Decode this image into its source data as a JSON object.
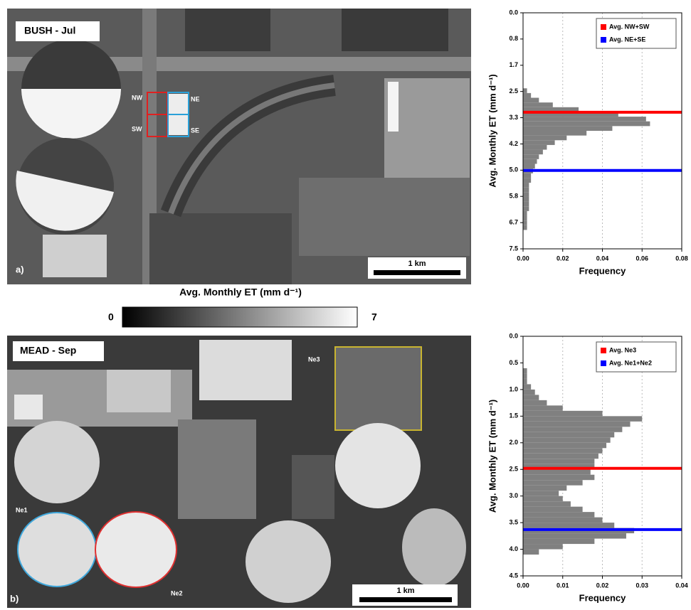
{
  "panels": [
    {
      "title": "BUSH - Jul",
      "tag": "a)",
      "scale": "1 km",
      "regions": [
        "NW",
        "NE",
        "SW",
        "SE"
      ]
    },
    {
      "title": "MEAD - Sep",
      "tag": "b)",
      "scale": "1 km",
      "regions": [
        "Ne1",
        "Ne2",
        "Ne3"
      ]
    }
  ],
  "colorbar": {
    "label": "Avg. Monthly ET (mm d⁻¹)",
    "min": 0,
    "max": 7
  },
  "chart_data": [
    {
      "type": "histogram",
      "orientation": "horizontal",
      "color": "#808080",
      "xlabel": "Frequency",
      "ylabel": "Avg. Monthly ET (mm d⁻¹)",
      "xlim": [
        0,
        0.08
      ],
      "xticks": [
        {
          "value": 0,
          "label": "0.00"
        },
        0.02,
        0.04,
        0.06,
        0.08
      ],
      "ylim": [
        0,
        7.5
      ],
      "yticks": [
        {
          "value": 0,
          "label": "0.0"
        },
        {
          "value": 0.833,
          "label": "0.8"
        },
        {
          "value": 1.667,
          "label": "1.7"
        },
        2.5,
        {
          "value": 3.333,
          "label": "3.3"
        },
        {
          "value": 4.167,
          "label": "4.2"
        },
        {
          "value": 5,
          "label": "5.0"
        },
        {
          "value": 5.833,
          "label": "5.8"
        },
        {
          "value": 6.667,
          "label": "6.7"
        },
        7.5
      ],
      "grid": true,
      "legend": "upper right",
      "bins": [
        2.4,
        2.55,
        2.7,
        2.85,
        3.0,
        3.15,
        3.3,
        3.45,
        3.6,
        3.75,
        3.9,
        4.05,
        4.2,
        4.35,
        4.5,
        4.65,
        4.8,
        4.95,
        5.1,
        5.25,
        5.4,
        5.55,
        5.7,
        5.85,
        6.0,
        6.15,
        6.3,
        6.45,
        6.6,
        6.75,
        6.9
      ],
      "counts": [
        0.002,
        0.004,
        0.008,
        0.015,
        0.028,
        0.048,
        0.062,
        0.064,
        0.045,
        0.032,
        0.022,
        0.016,
        0.012,
        0.01,
        0.008,
        0.007,
        0.006,
        0.005,
        0.004,
        0.004,
        0.003,
        0.003,
        0.003,
        0.003,
        0.003,
        0.003,
        0.002,
        0.002,
        0.002,
        0.002
      ],
      "lines": [
        {
          "name": "Avg. NW+SW",
          "color": "#ff0000",
          "value": 3.16
        },
        {
          "name": "Avg. NE+SE",
          "color": "#0000ff",
          "value": 5.01
        }
      ]
    },
    {
      "type": "histogram",
      "orientation": "horizontal",
      "color": "#808080",
      "xlabel": "Frequency",
      "ylabel": "Avg. Monthly ET (mm d⁻¹)",
      "xlim": [
        0,
        0.04
      ],
      "xticks": [
        {
          "value": 0,
          "label": "0.00"
        },
        0.01,
        0.02,
        0.03,
        0.04
      ],
      "ylim": [
        0,
        4.5
      ],
      "yticks": [
        {
          "value": 0,
          "label": "0.0"
        },
        0.5,
        {
          "value": 1,
          "label": "1.0"
        },
        1.5,
        {
          "value": 2,
          "label": "2.0"
        },
        2.5,
        {
          "value": 3,
          "label": "3.0"
        },
        3.5,
        {
          "value": 4,
          "label": "4.0"
        },
        4.5
      ],
      "grid": true,
      "legend": "upper right",
      "bins": [
        0.6,
        0.7,
        0.8,
        0.9,
        1.0,
        1.1,
        1.2,
        1.3,
        1.4,
        1.5,
        1.6,
        1.7,
        1.8,
        1.9,
        2.0,
        2.1,
        2.2,
        2.3,
        2.4,
        2.5,
        2.6,
        2.7,
        2.8,
        2.9,
        3.0,
        3.1,
        3.2,
        3.3,
        3.4,
        3.5,
        3.6,
        3.7,
        3.8,
        3.9,
        4.0,
        4.1
      ],
      "counts": [
        0.001,
        0.001,
        0.001,
        0.002,
        0.003,
        0.004,
        0.006,
        0.01,
        0.02,
        0.03,
        0.027,
        0.025,
        0.023,
        0.022,
        0.021,
        0.02,
        0.019,
        0.018,
        0.018,
        0.017,
        0.018,
        0.015,
        0.011,
        0.009,
        0.01,
        0.012,
        0.015,
        0.018,
        0.02,
        0.023,
        0.028,
        0.026,
        0.018,
        0.01,
        0.004
      ],
      "lines": [
        {
          "name": "Avg. Ne3",
          "color": "#ff0000",
          "value": 2.48
        },
        {
          "name": "Avg. Ne1+Ne2",
          "color": "#0000ff",
          "value": 3.63
        }
      ]
    }
  ]
}
